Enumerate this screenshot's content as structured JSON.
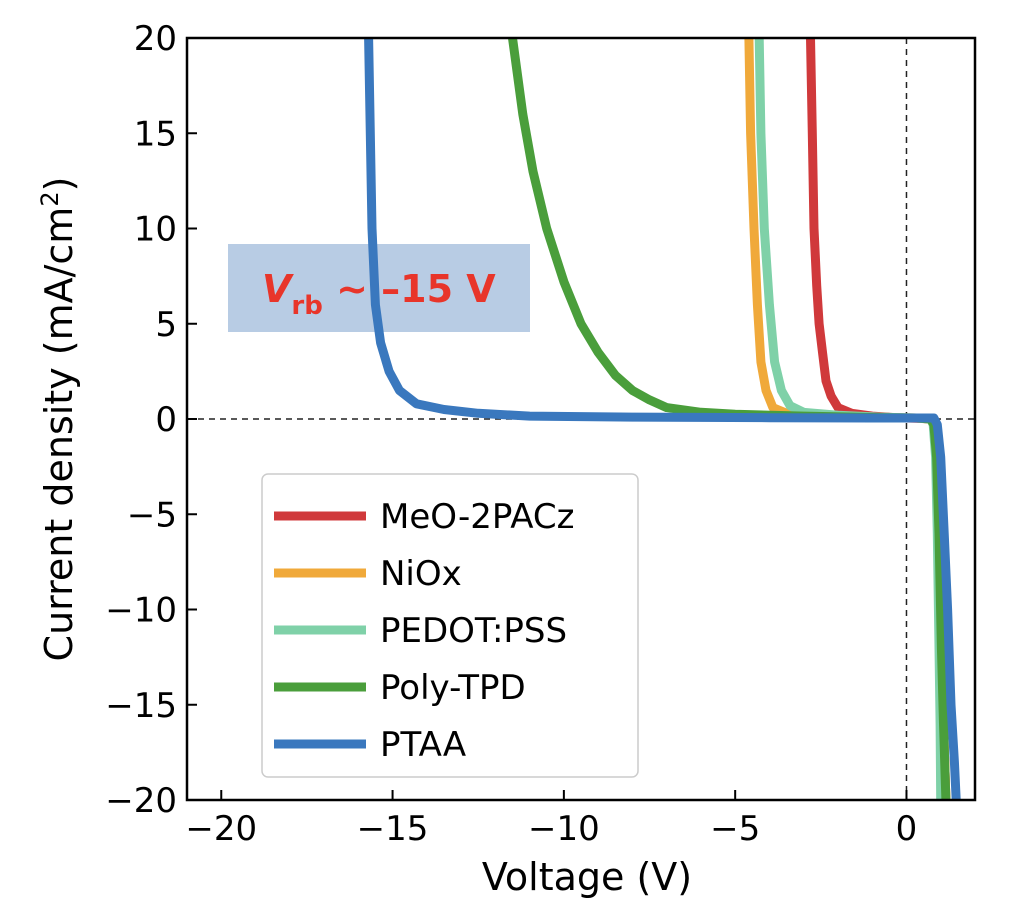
{
  "chart_data": {
    "type": "line",
    "title": "",
    "xlabel": "Voltage (V)",
    "ylabel": "Current density (mA/cm",
    "ylabel_sup": "2",
    "ylabel_close": ")",
    "xlim": [
      -21,
      2
    ],
    "ylim": [
      -20,
      20
    ],
    "xticks": [
      -20,
      -15,
      -10,
      -5,
      0
    ],
    "xtick_labels": [
      "−20",
      "−15",
      "−10",
      "−5",
      "0"
    ],
    "yticks": [
      -20,
      -15,
      -10,
      -5,
      0,
      5,
      10,
      15,
      20
    ],
    "ytick_labels": [
      "−20",
      "−15",
      "−10",
      "−5",
      "0",
      "5",
      "10",
      "15",
      "20"
    ],
    "grid": false,
    "reference_lines": {
      "x0": 0,
      "y0": 0,
      "style": "dashed"
    },
    "legend_position": "lower-left",
    "annotation": {
      "var": "V",
      "sub": "rb",
      "rest": " ~ –15 V",
      "text_color": "#e8352a",
      "box_color": "#b8cce4"
    },
    "series": [
      {
        "name": "MeO-2PACz",
        "color": "#d0393b",
        "points": [
          [
            -2.8,
            20
          ],
          [
            -2.75,
            15
          ],
          [
            -2.7,
            10
          ],
          [
            -2.62,
            7
          ],
          [
            -2.55,
            5
          ],
          [
            -2.45,
            3.5
          ],
          [
            -2.35,
            2
          ],
          [
            -2.2,
            1.2
          ],
          [
            -2.0,
            0.6
          ],
          [
            -1.6,
            0.3
          ],
          [
            -1.0,
            0.15
          ],
          [
            -0.3,
            0.07
          ],
          [
            0.4,
            0.03
          ],
          [
            0.7,
            0.0
          ],
          [
            0.8,
            -0.3
          ],
          [
            0.88,
            -2
          ],
          [
            0.95,
            -6
          ],
          [
            1.02,
            -12
          ],
          [
            1.08,
            -16
          ],
          [
            1.15,
            -20
          ]
        ]
      },
      {
        "name": "NiOx",
        "color": "#f0a93a",
        "points": [
          [
            -4.6,
            20
          ],
          [
            -4.55,
            15
          ],
          [
            -4.45,
            10
          ],
          [
            -4.35,
            6
          ],
          [
            -4.25,
            3
          ],
          [
            -4.1,
            1.5
          ],
          [
            -3.9,
            0.6
          ],
          [
            -3.5,
            0.3
          ],
          [
            -2.5,
            0.2
          ],
          [
            -1.0,
            0.1
          ],
          [
            0.3,
            0.05
          ],
          [
            0.7,
            0.0
          ],
          [
            0.8,
            -0.3
          ],
          [
            0.88,
            -2
          ],
          [
            0.95,
            -6
          ],
          [
            1.02,
            -12
          ],
          [
            1.08,
            -16
          ],
          [
            1.15,
            -20
          ]
        ]
      },
      {
        "name": "PEDOT:PSS",
        "color": "#7fd1a8",
        "points": [
          [
            -4.3,
            20
          ],
          [
            -4.25,
            15
          ],
          [
            -4.15,
            10
          ],
          [
            -4.0,
            6
          ],
          [
            -3.85,
            3
          ],
          [
            -3.65,
            1.5
          ],
          [
            -3.4,
            0.7
          ],
          [
            -3.0,
            0.35
          ],
          [
            -2.0,
            0.2
          ],
          [
            -0.8,
            0.1
          ],
          [
            0.3,
            0.05
          ],
          [
            0.7,
            0.0
          ],
          [
            0.78,
            -0.3
          ],
          [
            0.85,
            -2
          ],
          [
            0.9,
            -6
          ],
          [
            0.95,
            -12
          ],
          [
            0.98,
            -16
          ],
          [
            1.0,
            -20
          ]
        ]
      },
      {
        "name": "Poly-TPD",
        "color": "#4a9e3b",
        "points": [
          [
            -11.5,
            20
          ],
          [
            -11.2,
            16
          ],
          [
            -10.9,
            13
          ],
          [
            -10.5,
            10
          ],
          [
            -10.0,
            7.2
          ],
          [
            -9.5,
            5
          ],
          [
            -9.0,
            3.5
          ],
          [
            -8.5,
            2.3
          ],
          [
            -8.0,
            1.5
          ],
          [
            -7.5,
            1.0
          ],
          [
            -7.0,
            0.6
          ],
          [
            -6.0,
            0.35
          ],
          [
            -5.0,
            0.25
          ],
          [
            -3.0,
            0.15
          ],
          [
            -1.0,
            0.08
          ],
          [
            0.3,
            0.05
          ],
          [
            0.7,
            0.0
          ],
          [
            0.8,
            -0.3
          ],
          [
            0.88,
            -2
          ],
          [
            0.95,
            -6
          ],
          [
            1.02,
            -12
          ],
          [
            1.08,
            -16
          ],
          [
            1.15,
            -20
          ]
        ]
      },
      {
        "name": "PTAA",
        "color": "#3a78be",
        "points": [
          [
            -15.7,
            20
          ],
          [
            -15.65,
            15
          ],
          [
            -15.6,
            10
          ],
          [
            -15.5,
            6
          ],
          [
            -15.35,
            4
          ],
          [
            -15.1,
            2.5
          ],
          [
            -14.8,
            1.5
          ],
          [
            -14.3,
            0.8
          ],
          [
            -13.5,
            0.5
          ],
          [
            -12.5,
            0.3
          ],
          [
            -11.0,
            0.15
          ],
          [
            -8.0,
            0.1
          ],
          [
            -4.0,
            0.07
          ],
          [
            -1.0,
            0.05
          ],
          [
            0.3,
            0.05
          ],
          [
            0.8,
            0.05
          ],
          [
            0.9,
            -0.3
          ],
          [
            1.0,
            -2
          ],
          [
            1.1,
            -6
          ],
          [
            1.2,
            -10
          ],
          [
            1.3,
            -15
          ],
          [
            1.4,
            -18
          ],
          [
            1.45,
            -20
          ]
        ]
      }
    ]
  }
}
